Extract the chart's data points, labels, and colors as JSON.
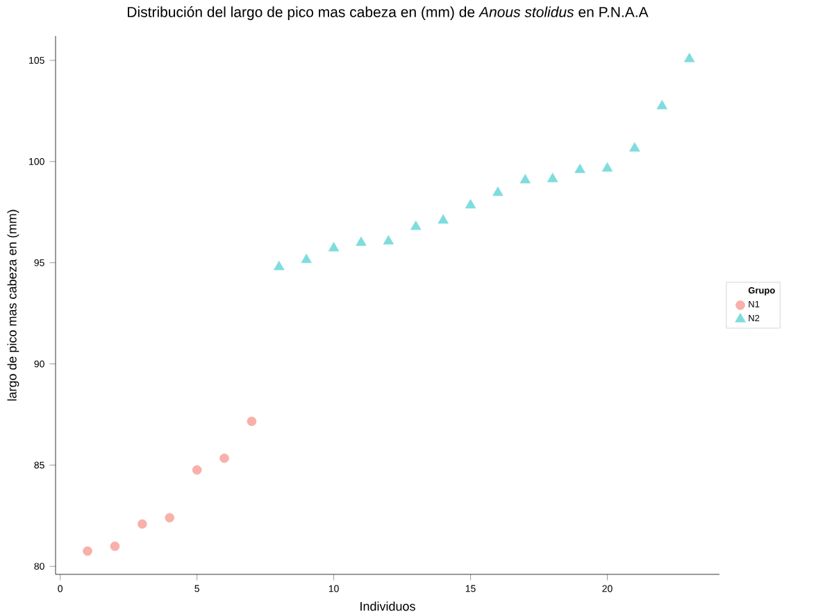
{
  "chart_data": {
    "type": "scatter",
    "title": "Distribución del largo de pico mas cabeza en (mm) de *Anous stolidus* en P.N.A.A",
    "xlabel": "Individuos",
    "ylabel": "largo de pico mas cabeza en (mm)",
    "legend_title": "Grupo",
    "series": [
      {
        "name": "N1",
        "color": "#f8b0aa",
        "marker": "circle",
        "x": [
          1,
          2,
          3,
          4,
          5,
          6,
          7
        ],
        "values": [
          80.75,
          80.99,
          82.09,
          82.4,
          84.76,
          85.34,
          87.16
        ]
      },
      {
        "name": "N2",
        "color": "#7fdcdd",
        "marker": "triangle",
        "x": [
          8,
          9,
          10,
          11,
          12,
          13,
          14,
          15,
          16,
          17,
          18,
          19,
          20,
          21,
          22,
          23
        ],
        "values": [
          94.79,
          95.14,
          95.72,
          95.99,
          96.06,
          96.78,
          97.09,
          97.84,
          98.46,
          99.08,
          99.14,
          99.59,
          99.66,
          100.65,
          102.74,
          105.07
        ]
      }
    ],
    "xlim": [
      -0.17,
      24.1
    ],
    "ylim": [
      79.6,
      106.2
    ],
    "xticks": [
      0,
      5,
      10,
      15,
      20
    ],
    "yticks": [
      80,
      85,
      90,
      95,
      100,
      105
    ],
    "grid": false,
    "legend": "right"
  }
}
